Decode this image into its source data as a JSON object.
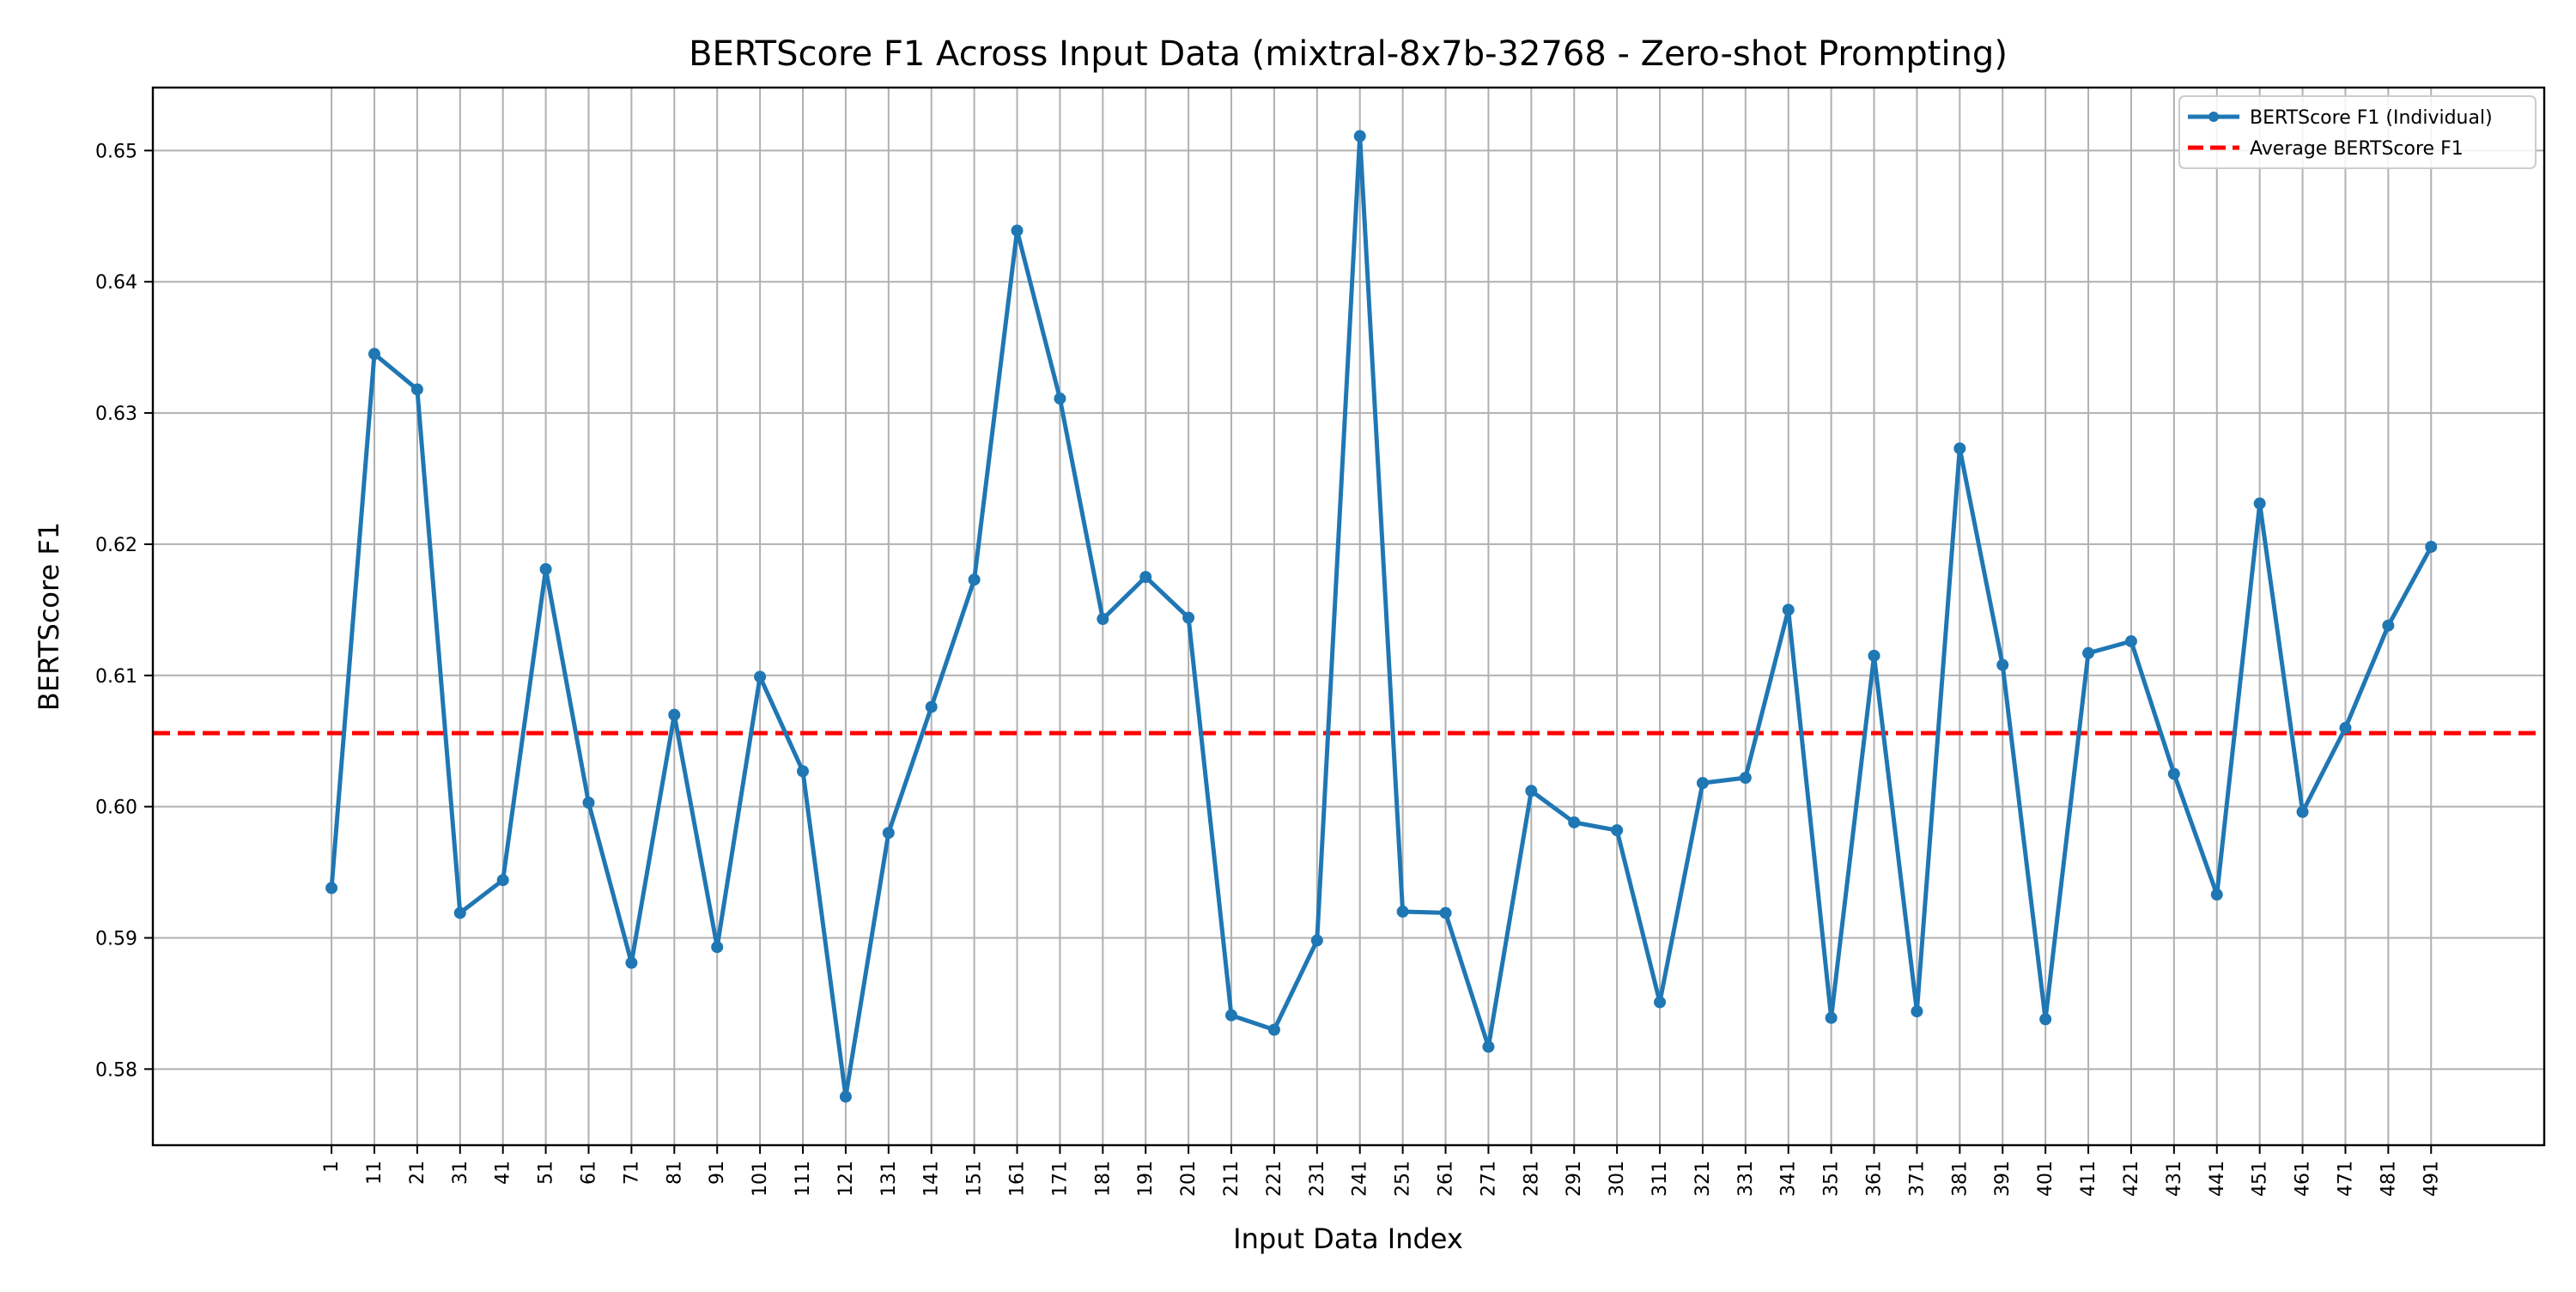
{
  "chart_data": {
    "type": "line",
    "title": "BERTScore F1 Across Input Data (mixtral-8x7b-32768 - Zero-shot Prompting)",
    "xlabel": "Input Data Index",
    "ylabel": "BERTScore F1",
    "x": [
      1,
      11,
      21,
      31,
      41,
      51,
      61,
      71,
      81,
      91,
      101,
      111,
      121,
      131,
      141,
      151,
      161,
      171,
      181,
      191,
      201,
      211,
      221,
      231,
      241,
      251,
      261,
      271,
      281,
      291,
      301,
      311,
      321,
      331,
      341,
      351,
      361,
      371,
      381,
      391,
      401,
      411,
      421,
      431,
      441,
      451,
      461,
      471,
      481,
      491
    ],
    "xtick_labels": [
      "1",
      "11",
      "21",
      "31",
      "41",
      "51",
      "61",
      "71",
      "81",
      "91",
      "101",
      "111",
      "121",
      "131",
      "141",
      "151",
      "161",
      "171",
      "181",
      "191",
      "201",
      "211",
      "221",
      "231",
      "241",
      "251",
      "261",
      "271",
      "281",
      "291",
      "301",
      "311",
      "321",
      "331",
      "341",
      "351",
      "361",
      "371",
      "381",
      "391",
      "401",
      "411",
      "421",
      "431",
      "441",
      "451",
      "461",
      "471",
      "481",
      "491"
    ],
    "xlim": [
      -40.7,
      517.4
    ],
    "ylim": [
      0.5742,
      0.6548
    ],
    "yticks": [
      0.58,
      0.59,
      0.6,
      0.61,
      0.62,
      0.63,
      0.64,
      0.65
    ],
    "ytick_labels": [
      "0.58",
      "0.59",
      "0.60",
      "0.61",
      "0.62",
      "0.63",
      "0.64",
      "0.65"
    ],
    "grid": true,
    "legend_position": "top-right",
    "series": [
      {
        "name": "BERTScore F1 (Individual)",
        "color": "#1f77b4",
        "style": "solid-with-markers",
        "values": [
          0.5938,
          0.6345,
          0.6318,
          0.5919,
          0.5944,
          0.6181,
          0.6003,
          0.5881,
          0.607,
          0.5893,
          0.6099,
          0.6027,
          0.5779,
          0.598,
          0.6076,
          0.6173,
          0.6439,
          0.6311,
          0.6143,
          0.6175,
          0.6144,
          0.5841,
          0.583,
          0.5898,
          0.6511,
          0.592,
          0.5919,
          0.5817,
          0.6012,
          0.5988,
          0.5982,
          0.5851,
          0.6018,
          0.6022,
          0.615,
          0.5839,
          0.6115,
          0.5844,
          0.6273,
          0.6108,
          0.5838,
          0.6117,
          0.6126,
          0.6025,
          0.5933,
          0.6231,
          0.5996,
          0.606,
          0.6138,
          0.6198
        ]
      },
      {
        "name": "Average BERTScore F1",
        "color": "#ff0000",
        "style": "dashed",
        "constant": 0.6056
      }
    ]
  }
}
